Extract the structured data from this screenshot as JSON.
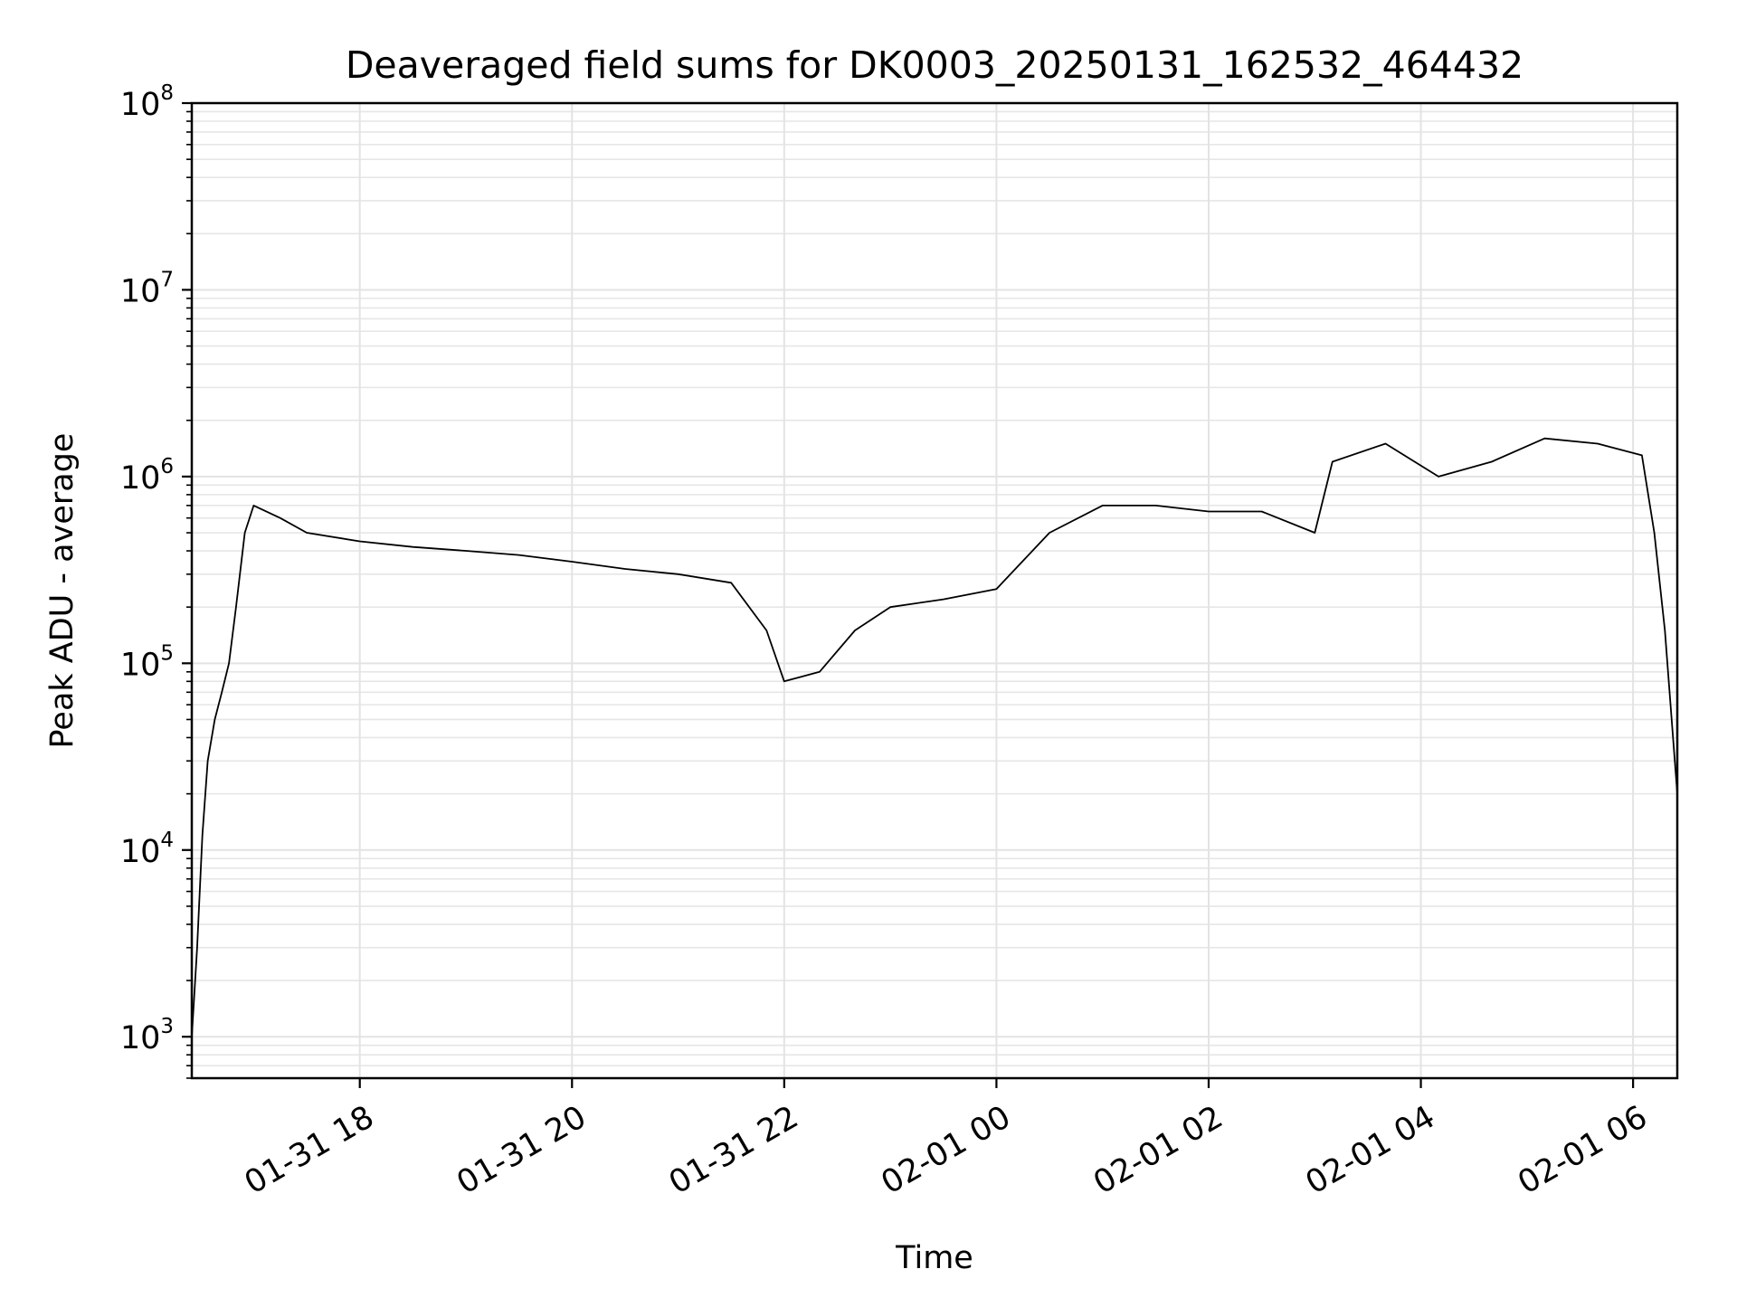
{
  "chart_data": {
    "type": "line",
    "title": "Deaveraged field sums for DK0003_20250131_162532_464432",
    "xlabel": "Time",
    "ylabel": "Peak ADU - average",
    "yscale": "log",
    "ylim": [
      600,
      100000000
    ],
    "xlim": [
      "2025-01-31 16:25",
      "2025-02-01 06:25"
    ],
    "grid": true,
    "line_color": "#000000",
    "x_ticks": [
      {
        "value": "2025-01-31 18:00",
        "label": "01-31 18"
      },
      {
        "value": "2025-01-31 20:00",
        "label": "01-31 20"
      },
      {
        "value": "2025-01-31 22:00",
        "label": "01-31 22"
      },
      {
        "value": "2025-02-01 00:00",
        "label": "02-01 00"
      },
      {
        "value": "2025-02-01 02:00",
        "label": "02-01 02"
      },
      {
        "value": "2025-02-01 04:00",
        "label": "02-01 04"
      },
      {
        "value": "2025-02-01 06:00",
        "label": "02-01 06"
      }
    ],
    "y_ticks": [
      {
        "value": 1000,
        "base": "10",
        "exp": "3"
      },
      {
        "value": 10000,
        "base": "10",
        "exp": "4"
      },
      {
        "value": 100000,
        "base": "10",
        "exp": "5"
      },
      {
        "value": 1000000,
        "base": "10",
        "exp": "6"
      },
      {
        "value": 10000000,
        "base": "10",
        "exp": "7"
      },
      {
        "value": 100000000,
        "base": "10",
        "exp": "8"
      }
    ],
    "series": [
      {
        "name": "",
        "points": [
          [
            "2025-01-31 16:25",
            1000
          ],
          [
            "2025-01-31 16:28",
            3000
          ],
          [
            "2025-01-31 16:31",
            12000
          ],
          [
            "2025-01-31 16:34",
            30000
          ],
          [
            "2025-01-31 16:38",
            50000
          ],
          [
            "2025-01-31 16:42",
            70000
          ],
          [
            "2025-01-31 16:46",
            100000
          ],
          [
            "2025-01-31 16:50",
            200000
          ],
          [
            "2025-01-31 16:55",
            500000
          ],
          [
            "2025-01-31 17:00",
            700000
          ],
          [
            "2025-01-31 17:15",
            600000
          ],
          [
            "2025-01-31 17:30",
            500000
          ],
          [
            "2025-01-31 18:00",
            450000
          ],
          [
            "2025-01-31 18:30",
            420000
          ],
          [
            "2025-01-31 19:00",
            400000
          ],
          [
            "2025-01-31 19:30",
            380000
          ],
          [
            "2025-01-31 20:00",
            350000
          ],
          [
            "2025-01-31 20:30",
            320000
          ],
          [
            "2025-01-31 21:00",
            300000
          ],
          [
            "2025-01-31 21:30",
            270000
          ],
          [
            "2025-01-31 21:50",
            150000
          ],
          [
            "2025-01-31 22:00",
            80000
          ],
          [
            "2025-01-31 22:20",
            90000
          ],
          [
            "2025-01-31 22:40",
            150000
          ],
          [
            "2025-01-31 23:00",
            200000
          ],
          [
            "2025-01-31 23:30",
            220000
          ],
          [
            "2025-02-01 00:00",
            250000
          ],
          [
            "2025-02-01 00:30",
            500000
          ],
          [
            "2025-02-01 01:00",
            700000
          ],
          [
            "2025-02-01 01:30",
            700000
          ],
          [
            "2025-02-01 02:00",
            650000
          ],
          [
            "2025-02-01 02:30",
            650000
          ],
          [
            "2025-02-01 03:00",
            500000
          ],
          [
            "2025-02-01 03:10",
            1200000
          ],
          [
            "2025-02-01 03:40",
            1500000
          ],
          [
            "2025-02-01 04:10",
            1000000
          ],
          [
            "2025-02-01 04:40",
            1200000
          ],
          [
            "2025-02-01 05:10",
            1600000
          ],
          [
            "2025-02-01 05:40",
            1500000
          ],
          [
            "2025-02-01 06:05",
            1300000
          ],
          [
            "2025-02-01 06:12",
            500000
          ],
          [
            "2025-02-01 06:18",
            150000
          ],
          [
            "2025-02-01 06:25",
            20000
          ]
        ]
      }
    ]
  }
}
